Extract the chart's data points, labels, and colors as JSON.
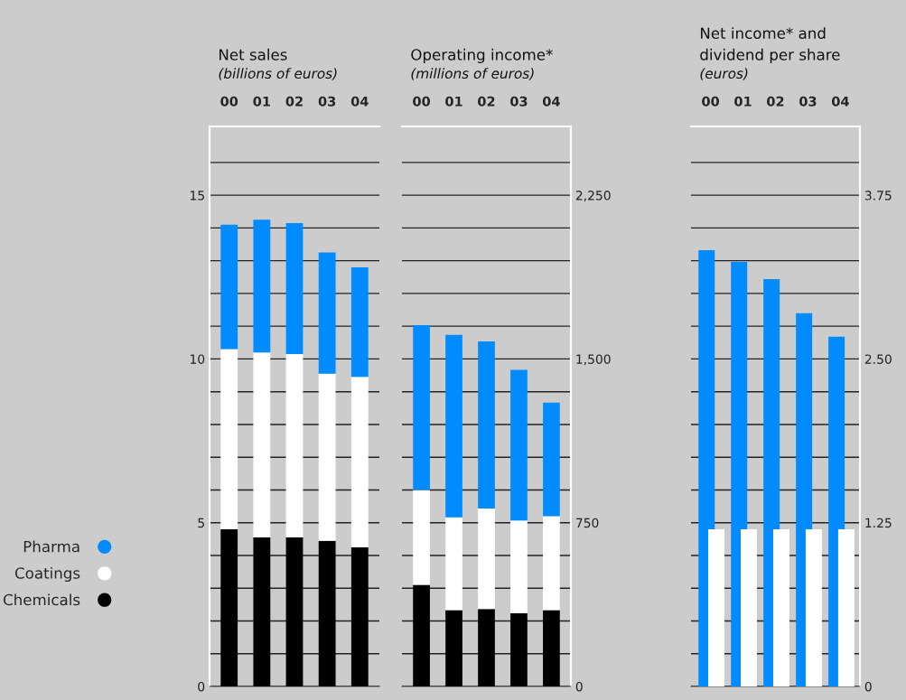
{
  "chart_data": [
    {
      "type": "bar",
      "title": "Net sales",
      "subtitle": "(billions of euros)",
      "categories": [
        "00",
        "01",
        "02",
        "03",
        "04"
      ],
      "stacked": true,
      "legend": "left",
      "grid": "y",
      "ylim": [
        0,
        17.1
      ],
      "yticks": [
        0,
        {
          "value": 1,
          "label": null
        },
        {
          "value": 2,
          "label": null
        },
        {
          "value": 3,
          "label": null
        },
        {
          "value": 4,
          "label": null
        },
        5,
        {
          "value": 6,
          "label": null
        },
        {
          "value": 7,
          "label": null
        },
        {
          "value": 8,
          "label": null
        },
        {
          "value": 9,
          "label": null
        },
        10,
        {
          "value": 11,
          "label": null
        },
        {
          "value": 12,
          "label": null
        },
        {
          "value": 13,
          "label": null
        },
        {
          "value": 14,
          "label": null
        },
        15,
        {
          "value": 16,
          "label": null
        }
      ],
      "series": [
        {
          "name": "Chemicals",
          "color": "#000000",
          "values": [
            4.8,
            4.55,
            4.55,
            4.45,
            4.25
          ]
        },
        {
          "name": "Coatings",
          "color": "#ffffff",
          "values": [
            5.5,
            5.65,
            5.6,
            5.1,
            5.2
          ]
        },
        {
          "name": "Pharma",
          "color": "#008cff",
          "values": [
            3.8,
            4.05,
            4.0,
            3.7,
            3.35
          ]
        }
      ]
    },
    {
      "type": "bar",
      "title": "Operating income*",
      "subtitle": "(millions of euros)",
      "categories": [
        "00",
        "01",
        "02",
        "03",
        "04"
      ],
      "stacked": true,
      "grid": "y",
      "y2lim": [
        0,
        2565
      ],
      "y2ticks": [
        0,
        {
          "value": 150,
          "label": null
        },
        {
          "value": 300,
          "label": null
        },
        {
          "value": 450,
          "label": null
        },
        {
          "value": 600,
          "label": null
        },
        750,
        {
          "value": 900,
          "label": null
        },
        {
          "value": 1050,
          "label": null
        },
        {
          "value": 1200,
          "label": null
        },
        {
          "value": 1350,
          "label": null
        },
        {
          "value": 1500,
          "label": "1,500"
        },
        {
          "value": 1650,
          "label": null
        },
        {
          "value": 1800,
          "label": null
        },
        {
          "value": 1950,
          "label": null
        },
        {
          "value": 2100,
          "label": null
        },
        {
          "value": 2250,
          "label": "2,250"
        },
        {
          "value": 2400,
          "label": null
        }
      ],
      "series": [
        {
          "color": "#000000",
          "axis": "y2",
          "values": [
            465,
            350,
            355,
            335,
            350
          ]
        },
        {
          "color": "#ffffff",
          "axis": "y2",
          "values": [
            435,
            425,
            460,
            425,
            430
          ]
        },
        {
          "color": "#008cff",
          "axis": "y2",
          "values": [
            755,
            835,
            765,
            690,
            520
          ]
        }
      ]
    },
    {
      "type": "bar",
      "title": "Net income* and\ndividend per share",
      "subtitle": "(euros)",
      "categories": [
        "00",
        "01",
        "02",
        "03",
        "04"
      ],
      "grid": "y",
      "y2lim": [
        0,
        4.275
      ],
      "y2ticks": [
        0,
        {
          "value": 0.25,
          "label": null
        },
        {
          "value": 0.5,
          "label": null
        },
        {
          "value": 0.75,
          "label": null
        },
        {
          "value": 1,
          "label": null
        },
        1.25,
        {
          "value": 1.5,
          "label": null
        },
        {
          "value": 1.75,
          "label": null
        },
        {
          "value": 2,
          "label": null
        },
        {
          "value": 2.25,
          "label": null
        },
        {
          "value": 2.5,
          "label": "2.50"
        },
        {
          "value": 2.75,
          "label": null
        },
        {
          "value": 3,
          "label": null
        },
        {
          "value": 3.25,
          "label": null
        },
        {
          "value": 3.5,
          "label": null
        },
        3.75,
        {
          "value": 4,
          "label": null
        }
      ],
      "series": [
        {
          "color": "#008cff",
          "axis": "y2",
          "values": [
            3.33,
            3.24,
            3.11,
            2.85,
            2.67
          ]
        },
        {
          "color": "#ffffff",
          "axis": "y2",
          "values": [
            1.2,
            1.2,
            1.2,
            1.2,
            1.2
          ]
        }
      ]
    }
  ]
}
